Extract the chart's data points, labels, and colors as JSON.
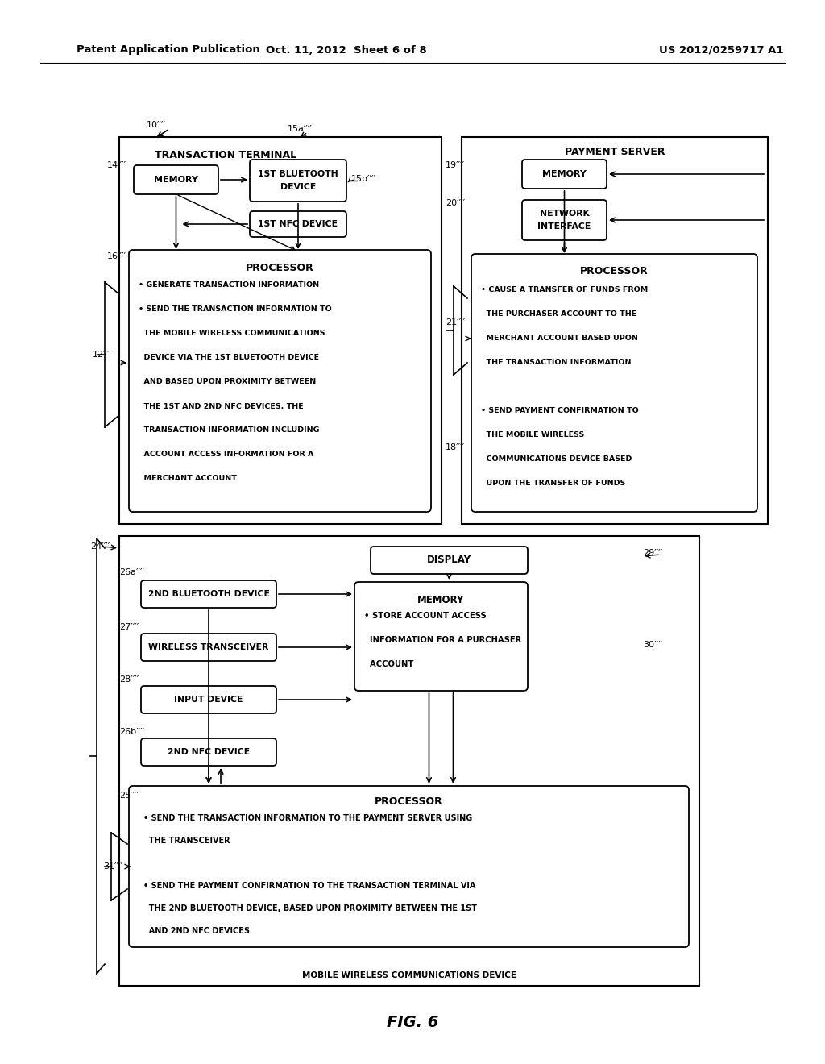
{
  "bg": "#ffffff",
  "header_left": "Patent Application Publication",
  "header_mid": "Oct. 11, 2012  Sheet 6 of 8",
  "header_right": "US 2012/0259717 A1",
  "fig_label": "FIG. 6"
}
